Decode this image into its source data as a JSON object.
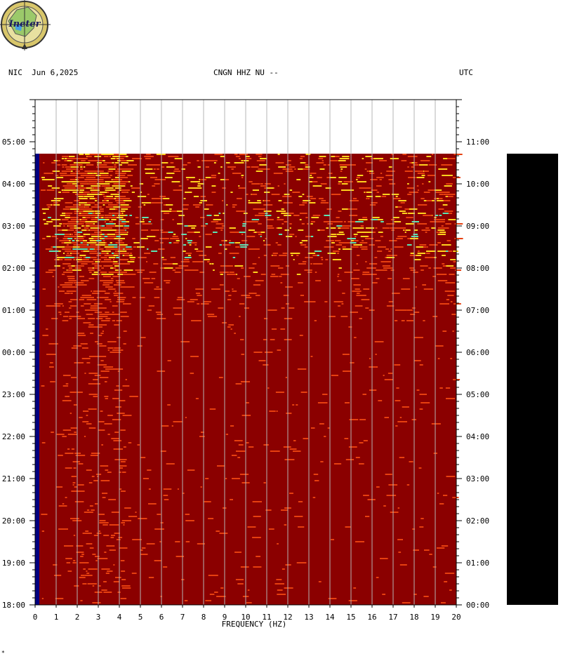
{
  "header": {
    "network": "NIC",
    "date": "Jun 6,2025",
    "station": "CNGN HHZ NU --",
    "tz": "UTC"
  },
  "logo": {
    "text": "Ineter"
  },
  "footnote": "*",
  "colors": {
    "background": "#8B0000",
    "low_band": "#000080",
    "mid": "#E64010",
    "high": "#FFD21E",
    "peak": "#5AE6B4",
    "grid": "#B4B4B4",
    "side_bar": "#000000"
  },
  "chart_data": {
    "type": "heatmap",
    "title": "",
    "xlabel": "FREQUENCY (HZ)",
    "ylabel": "",
    "xlim": [
      0,
      20
    ],
    "x_ticks": [
      "0",
      "1",
      "2",
      "3",
      "4",
      "5",
      "6",
      "7",
      "8",
      "9",
      "10",
      "11",
      "12",
      "13",
      "14",
      "15",
      "16",
      "17",
      "18",
      "19",
      "20"
    ],
    "y_ticks_left": [
      "05:00",
      "04:00",
      "03:00",
      "02:00",
      "01:00",
      "00:00",
      "23:00",
      "22:00",
      "21:00",
      "20:00",
      "19:00",
      "18:00"
    ],
    "y_ticks_right": [
      "11:00",
      "10:00",
      "09:00",
      "08:00",
      "07:00",
      "06:00",
      "05:00",
      "04:00",
      "03:00",
      "02:00",
      "01:00",
      "00:00"
    ],
    "data_start": "18:00",
    "data_end": "04:43",
    "grid": true,
    "intensity_profile": [
      {
        "from_hour_ago": 0.0,
        "to_hour_ago": 1.4,
        "level": 0.7
      },
      {
        "from_hour_ago": 1.4,
        "to_hour_ago": 2.5,
        "level": 0.85
      },
      {
        "from_hour_ago": 2.5,
        "to_hour_ago": 2.9,
        "level": 0.6
      },
      {
        "from_hour_ago": 2.9,
        "to_hour_ago": 4.0,
        "level": 0.3
      },
      {
        "from_hour_ago": 4.0,
        "to_hour_ago": 10.7,
        "level": 0.1
      }
    ]
  }
}
